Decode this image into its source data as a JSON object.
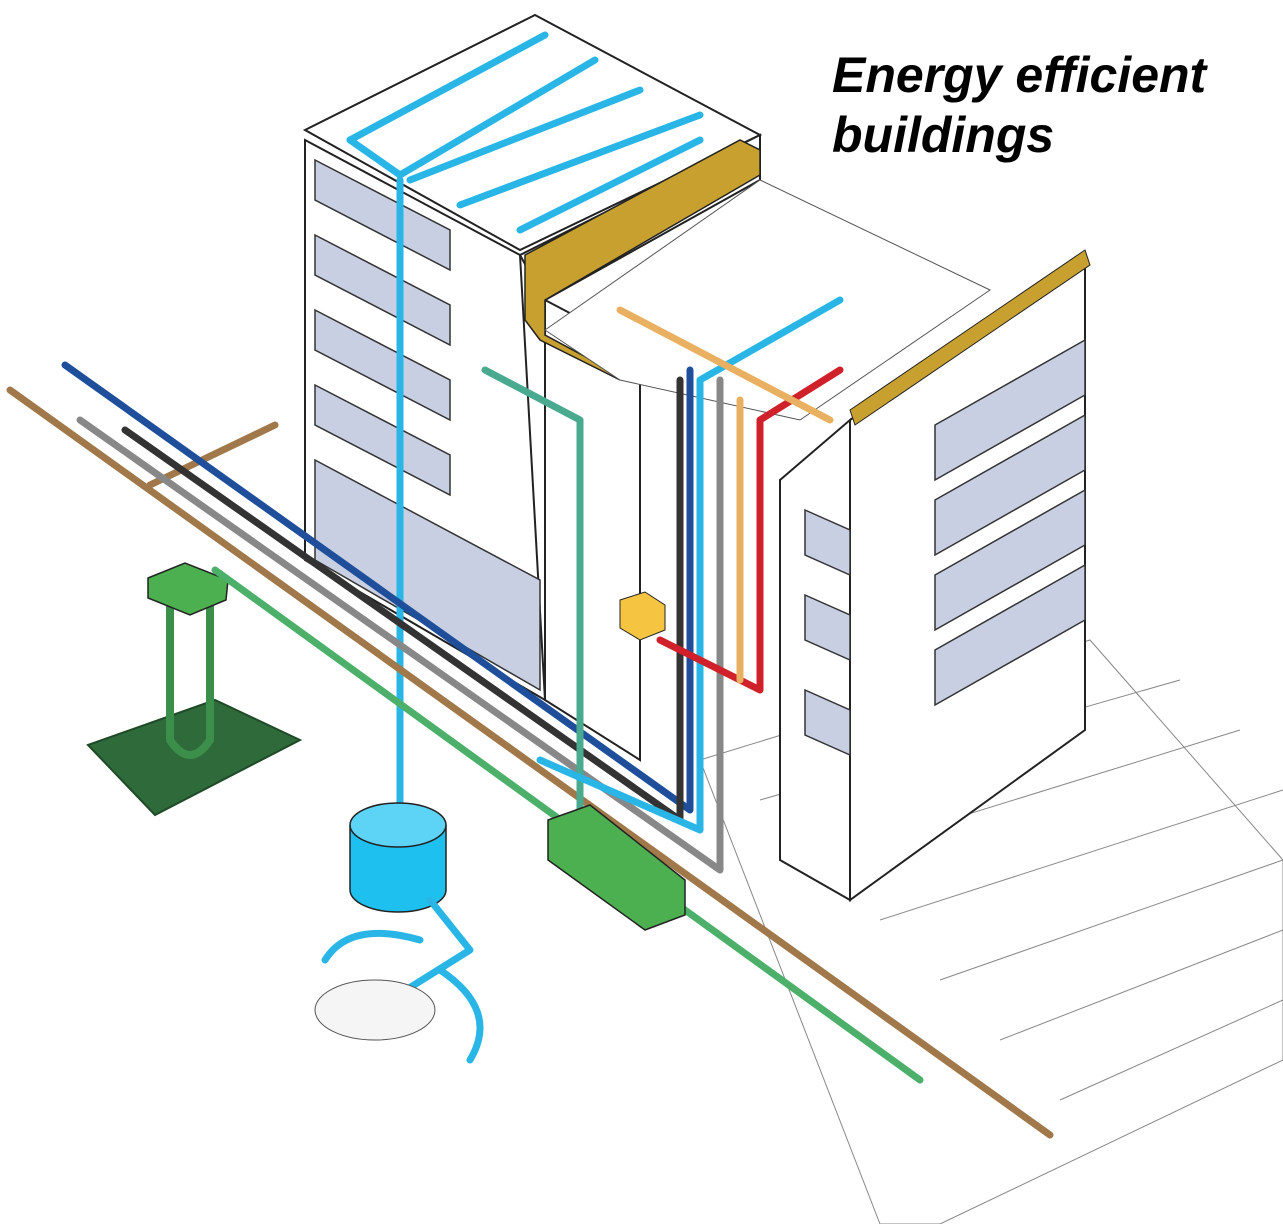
{
  "title": {
    "lines": [
      "Energy efficient",
      "buildings"
    ]
  }
}
